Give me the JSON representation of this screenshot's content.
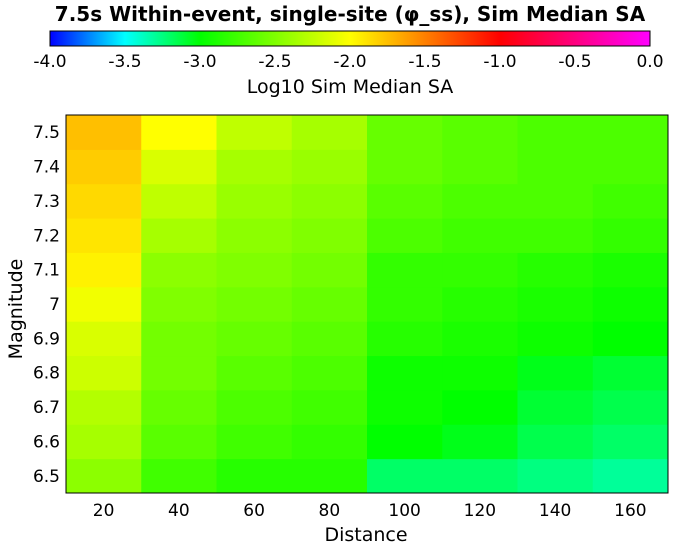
{
  "chart_data": {
    "type": "heatmap",
    "title": "7.5s Within-event, single-site (φ_ss), Sim Median SA",
    "xlabel": "Distance",
    "ylabel": "Magnitude",
    "colorbar": {
      "label": "Log10 Sim Median SA",
      "range": [
        -4.0,
        0.0
      ],
      "tick_labels": [
        "-4.0",
        "-3.5",
        "-3.0",
        "-2.5",
        "-2.0",
        "-1.5",
        "-1.0",
        "-0.5",
        "0.0"
      ],
      "stops": [
        {
          "v": -4.0,
          "color": "#0000ff"
        },
        {
          "v": -3.5,
          "color": "#00ffff"
        },
        {
          "v": -3.0,
          "color": "#00ff00"
        },
        {
          "v": -2.0,
          "color": "#ffff00"
        },
        {
          "v": -1.0,
          "color": "#ff0000"
        },
        {
          "v": 0.0,
          "color": "#ff00ff"
        }
      ]
    },
    "x_tick_labels": [
      "20",
      "40",
      "60",
      "80",
      "100",
      "120",
      "140",
      "160"
    ],
    "y_tick_labels": [
      "6.5",
      "6.6",
      "6.7",
      "6.8",
      "6.9",
      "7",
      "7.1",
      "7.2",
      "7.3",
      "7.4",
      "7.5"
    ],
    "xlim": [
      10,
      170
    ],
    "ylim": [
      6.45,
      7.55
    ],
    "x": [
      20,
      40,
      60,
      80,
      100,
      120,
      140,
      160
    ],
    "y": [
      6.5,
      6.6,
      6.7,
      6.8,
      6.9,
      7.0,
      7.1,
      7.2,
      7.3,
      7.4,
      7.5
    ],
    "z": [
      [
        -2.45,
        -2.75,
        -2.85,
        -2.85,
        -3.2,
        -3.2,
        -3.25,
        -3.3
      ],
      [
        -2.35,
        -2.65,
        -2.75,
        -2.8,
        -3.0,
        -3.05,
        -3.15,
        -3.2
      ],
      [
        -2.3,
        -2.6,
        -2.7,
        -2.75,
        -2.95,
        -3.0,
        -3.1,
        -3.15
      ],
      [
        -2.2,
        -2.55,
        -2.65,
        -2.7,
        -2.95,
        -2.95,
        -3.05,
        -3.1
      ],
      [
        -2.15,
        -2.55,
        -2.6,
        -2.65,
        -2.85,
        -2.9,
        -2.95,
        -3.0
      ],
      [
        -2.05,
        -2.5,
        -2.55,
        -2.6,
        -2.8,
        -2.85,
        -2.9,
        -2.95
      ],
      [
        -1.95,
        -2.45,
        -2.5,
        -2.55,
        -2.8,
        -2.8,
        -2.85,
        -2.9
      ],
      [
        -1.9,
        -2.35,
        -2.45,
        -2.5,
        -2.7,
        -2.75,
        -2.75,
        -2.8
      ],
      [
        -1.85,
        -2.25,
        -2.4,
        -2.45,
        -2.65,
        -2.7,
        -2.7,
        -2.75
      ],
      [
        -1.8,
        -2.15,
        -2.35,
        -2.4,
        -2.6,
        -2.65,
        -2.7,
        -2.7
      ],
      [
        -1.75,
        -2.0,
        -2.25,
        -2.35,
        -2.6,
        -2.65,
        -2.7,
        -2.7
      ]
    ]
  }
}
